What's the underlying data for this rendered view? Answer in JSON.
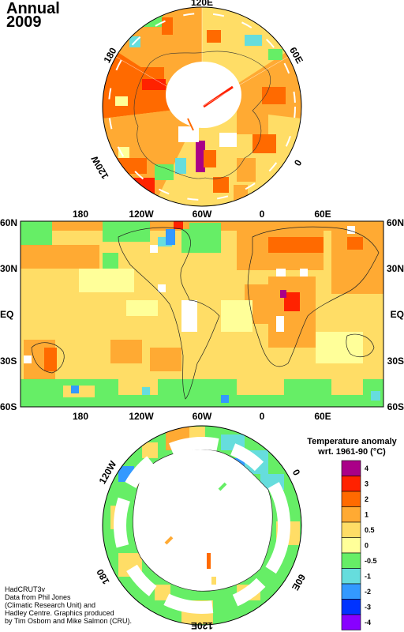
{
  "title": {
    "line1": "Annual",
    "line2": "2009"
  },
  "dataset": "HadCRUT3v",
  "credits": [
    "Data from Phil Jones",
    "(Climatic Research Unit) and",
    "Hadley Centre.  Graphics produced",
    "by Tim Osborn and Mike Salmon (CRU)."
  ],
  "north_polar_labels": {
    "top": "120E",
    "upper_left": "180",
    "upper_right": "60E",
    "lower_left": "120W",
    "lower_right": "0"
  },
  "south_polar_labels": {
    "upper_left": "120W",
    "upper_right": "0",
    "lower_left": "180",
    "lower_right": "60E",
    "bottom": "120E"
  },
  "map_labels": {
    "lon_ticks": [
      "180",
      "120W",
      "60W",
      "0",
      "60E"
    ],
    "lat_ticks": [
      "60N",
      "30N",
      "EQ",
      "30S",
      "60S"
    ]
  },
  "legend": {
    "title_line1": "Temperature anomaly",
    "title_line2": "wrt. 1961-90  (°C)",
    "bins": [
      {
        "label": "4",
        "color": "#aa0088"
      },
      {
        "label": "3",
        "color": "#ff2200"
      },
      {
        "label": "2",
        "color": "#ff6a00"
      },
      {
        "label": "1",
        "color": "#ffaa33"
      },
      {
        "label": "0.5",
        "color": "#ffdd66"
      },
      {
        "label": "0",
        "color": "#ffff99"
      },
      {
        "label": "-0.5",
        "color": "#66ee66"
      },
      {
        "label": "-1",
        "color": "#66dddd"
      },
      {
        "label": "-2",
        "color": "#3399ff"
      },
      {
        "label": "-3",
        "color": "#0033ff"
      },
      {
        "label": "-4",
        "color": "#8800ff"
      }
    ]
  },
  "colors": {
    "warm_strong": "#ff6a00",
    "warm": "#ffaa33",
    "mild": "#ffdd66",
    "neutral": "#ffff99",
    "cool": "#66ee66",
    "land": "#ffffff"
  }
}
